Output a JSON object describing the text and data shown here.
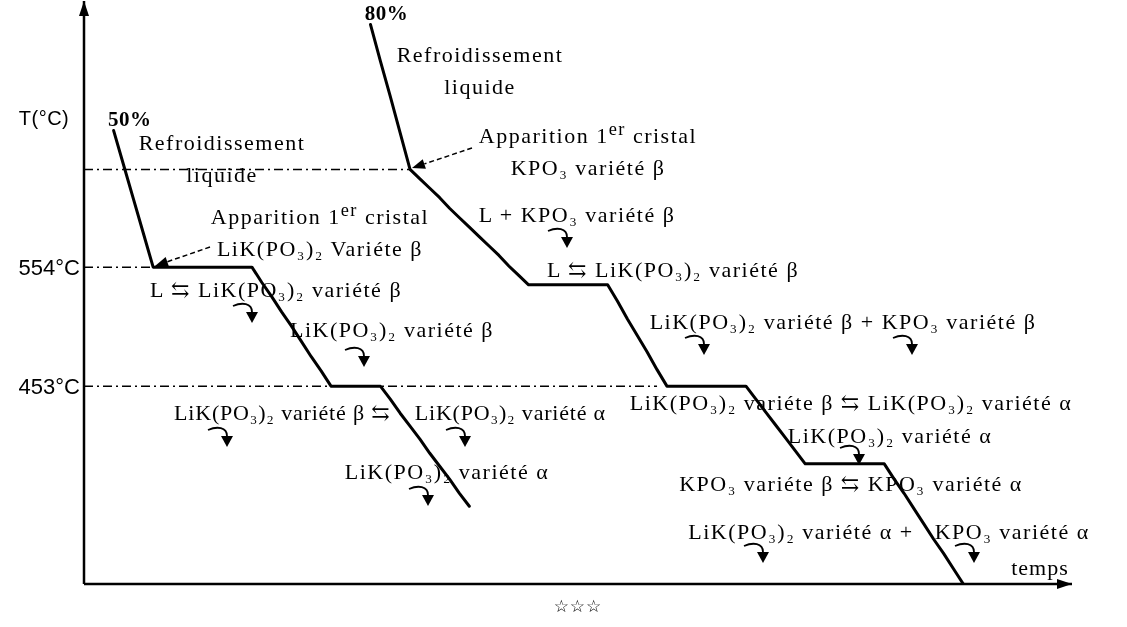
{
  "chart_data": {
    "type": "line",
    "ylabel": "T(°C)",
    "categories": [
      null,
      null,
      null,
      null,
      null,
      null,
      null,
      null,
      null,
      null,
      null,
      null,
      null,
      null,
      null,
      null,
      null,
      null,
      null,
      null,
      null,
      null,
      null,
      null,
      null,
      null,
      null,
      null,
      null,
      null,
      null,
      null,
      null,
      null,
      null,
      null,
      null,
      null,
      null,
      null,
      null,
      null,
      null,
      null,
      null,
      null,
      null,
      null,
      null,
      null,
      null,
      null,
      null,
      null,
      null,
      null,
      null,
      null,
      null,
      null,
      null,
      null,
      null,
      null,
      null,
      null,
      null,
      null,
      null,
      null,
      null,
      null,
      null,
      null,
      null,
      null,
      null,
      null,
      null,
      null,
      null,
      null,
      null,
      null,
      null,
      null,
      null,
      null,
      null,
      null,
      null,
      null,
      null,
      null,
      null,
      null,
      null,
      null,
      null,
      null,
      null
    ],
    "ylim": [
      285,
      780
    ],
    "yticks": [
      {
        "value": 453,
        "label": "453°C"
      },
      {
        "value": 554,
        "label": "554°C"
      }
    ],
    "series": [
      {
        "name": "50%",
        "color": "#000000",
        "values": [
          null,
          null,
          null,
          670,
          641,
          612,
          583,
          554,
          554,
          554,
          554,
          554,
          554,
          554,
          554,
          554,
          554,
          554,
          541,
          529,
          516,
          504,
          491,
          478,
          466,
          453,
          453,
          453,
          453,
          453,
          453,
          442,
          430,
          419,
          408,
          396,
          385,
          374,
          362,
          351,
          null,
          null,
          null,
          null,
          null,
          null,
          null,
          null,
          null,
          null,
          null,
          null,
          null,
          null,
          null,
          null,
          null,
          null,
          null,
          null,
          null,
          null,
          null,
          null,
          null,
          null,
          null,
          null,
          null,
          null,
          null,
          null,
          null,
          null,
          null,
          null,
          null,
          null,
          null,
          null,
          null,
          null,
          null,
          null,
          null,
          null,
          null,
          null,
          null,
          null,
          null,
          null,
          null,
          null,
          null,
          null,
          null,
          null,
          null,
          null,
          null
        ]
      },
      {
        "name": "80%",
        "color": "#000000",
        "values": [
          null,
          null,
          null,
          null,
          null,
          null,
          null,
          null,
          null,
          null,
          null,
          null,
          null,
          null,
          null,
          null,
          null,
          null,
          null,
          null,
          null,
          null,
          null,
          null,
          null,
          null,
          null,
          null,
          null,
          760,
          729,
          699,
          668,
          637,
          629,
          621,
          613,
          604,
          596,
          588,
          580,
          572,
          564,
          555,
          547,
          539,
          539,
          539,
          539,
          539,
          539,
          539,
          539,
          539,
          525,
          510,
          496,
          482,
          467,
          453,
          453,
          453,
          453,
          453,
          453,
          453,
          453,
          453,
          442,
          431,
          420,
          409,
          398,
          387,
          387,
          387,
          387,
          387,
          387,
          387,
          387,
          387,
          374,
          362,
          349,
          336,
          323,
          311,
          298,
          285,
          null,
          null,
          null,
          null,
          null,
          null,
          null,
          null,
          null,
          null,
          null
        ]
      },
      {
        "color": "#000000",
        "line_style": "dashed",
        "values": [
          637,
          637,
          637,
          637,
          637,
          637,
          637,
          637,
          637,
          637,
          637,
          637,
          637,
          637,
          637,
          637,
          637,
          637,
          637,
          637,
          637,
          637,
          637,
          637,
          637,
          637,
          637,
          637,
          637,
          637,
          637,
          637,
          637,
          637,
          null,
          null,
          null,
          null,
          null,
          null,
          null,
          null,
          null,
          null,
          null,
          null,
          null,
          null,
          null,
          null,
          null,
          null,
          null,
          null,
          null,
          null,
          null,
          null,
          null,
          null,
          null,
          null,
          null,
          null,
          null,
          null,
          null,
          null,
          null,
          null,
          null,
          null,
          null,
          null,
          null,
          null,
          null,
          null,
          null,
          null,
          null,
          null,
          null,
          null,
          null,
          null,
          null,
          null,
          null,
          null,
          null,
          null,
          null,
          null,
          null,
          null,
          null,
          null,
          null,
          null,
          null
        ]
      },
      {
        "color": "#000000",
        "line_style": "dashed",
        "values": [
          554,
          554,
          554,
          554,
          554,
          554,
          554,
          554,
          null,
          null,
          null,
          null,
          null,
          null,
          null,
          null,
          null,
          null,
          null,
          null,
          null,
          null,
          null,
          null,
          null,
          null,
          null,
          null,
          null,
          null,
          null,
          null,
          null,
          null,
          null,
          null,
          null,
          null,
          null,
          null,
          null,
          null,
          null,
          null,
          null,
          null,
          null,
          null,
          null,
          null,
          null,
          null,
          null,
          null,
          null,
          null,
          null,
          null,
          null,
          null,
          null,
          null,
          null,
          null,
          null,
          null,
          null,
          null,
          null,
          null,
          null,
          null,
          null,
          null,
          null,
          null,
          null,
          null,
          null,
          null,
          null,
          null,
          null,
          null,
          null,
          null,
          null,
          null,
          null,
          null,
          null,
          null,
          null,
          null,
          null,
          null,
          null,
          null,
          null,
          null,
          null
        ]
      },
      {
        "color": "#000000",
        "line_style": "dashed",
        "values": [
          453,
          453,
          453,
          453,
          453,
          453,
          453,
          453,
          453,
          453,
          453,
          453,
          453,
          453,
          453,
          453,
          453,
          453,
          453,
          453,
          453,
          453,
          453,
          453,
          453,
          453,
          453,
          453,
          453,
          453,
          453,
          453,
          453,
          453,
          453,
          453,
          453,
          453,
          453,
          453,
          453,
          453,
          453,
          453,
          453,
          453,
          453,
          453,
          453,
          453,
          453,
          453,
          453,
          453,
          453,
          453,
          453,
          453,
          453,
          null,
          null,
          null,
          null,
          null,
          null,
          null,
          null,
          null,
          null,
          null,
          null,
          null,
          null,
          null,
          null,
          null,
          null,
          null,
          null,
          null,
          null,
          null,
          null,
          null,
          null,
          null,
          null,
          null,
          null,
          null,
          null,
          null,
          null,
          null,
          null,
          null,
          null,
          null,
          null,
          null,
          null
        ]
      }
    ],
    "annotations": [
      "Refroidissement liquide",
      "Apparition 1$^{er}$ cristal LiK(PO₃)₂ Variéte β",
      "L ⇆ LiK(PO₃)₂ variété β",
      "LiK(PO₃)₂ variété β",
      "LiK(PO₃)₂ variété β ⇆ LiK(PO₃)₂ variété α",
      "LiK(PO₃)₂ variété α",
      "Refroidissement liquide",
      "Apparition 1$^{er}$ cristal KPO₃ variété β",
      "L + KPO₃ variété β",
      "L ⇆ LiK(PO₃)₂ variété β",
      "LiK(PO₃)₂ variété β + KPO₃ variété β",
      "LiK(PO₃)₂ variéte β ⇆ LiK(PO₃)₂ variété α",
      "LiK(PO₃)₂ variété α",
      "KPO₃ variéte β ⇆ KPO₃ variété α",
      "LiK(PO₃)₂ variété α + KPO₃ variété α",
      "temps",
      "☆☆☆"
    ]
  }
}
